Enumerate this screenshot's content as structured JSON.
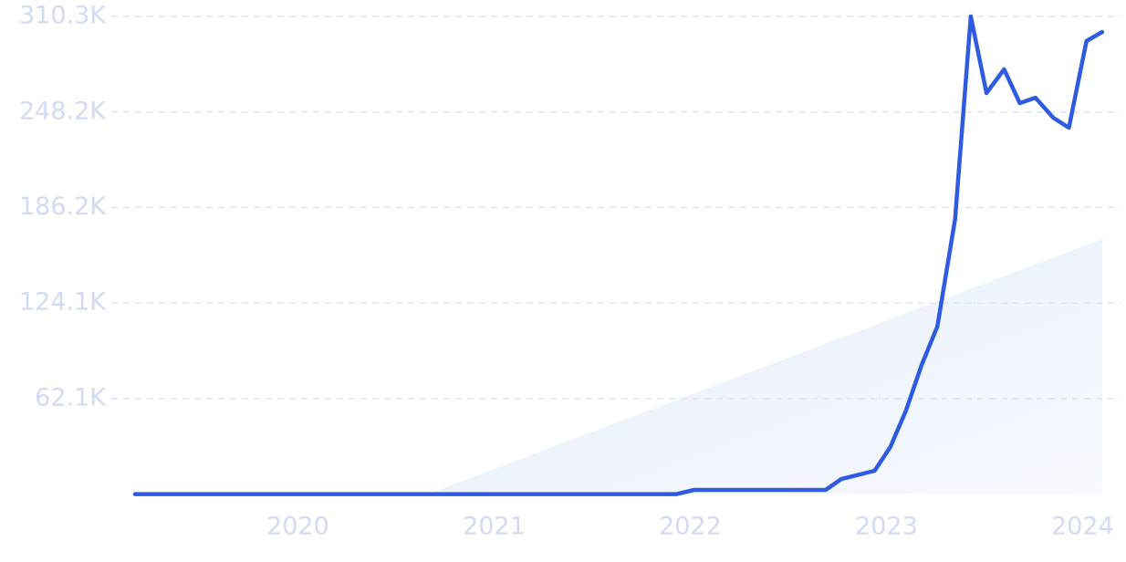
{
  "chart_data": {
    "type": "line",
    "x": [
      2019.17,
      2021.93,
      2022.02,
      2022.69,
      2022.77,
      2022.94,
      2023.02,
      2023.1,
      2023.18,
      2023.26,
      2023.35,
      2023.43,
      2023.51,
      2023.6,
      2023.68,
      2023.76,
      2023.85,
      2023.93,
      2024.02,
      2024.1
    ],
    "series": [
      {
        "color": "#2f5be0",
        "values": [
          0,
          0,
          2700,
          2700,
          9800,
          15200,
          30600,
          54300,
          84000,
          108900,
          178700,
          310300,
          260500,
          275900,
          254000,
          257500,
          244500,
          238000,
          294300,
          300200
        ]
      }
    ],
    "xlim": [
      2019.17,
      2024.17
    ],
    "xticks": [
      2020,
      2021,
      2022,
      2023,
      2024
    ],
    "ylim": [
      0,
      310300
    ],
    "yticks": [
      {
        "value": 62100,
        "label": "62.1K"
      },
      {
        "value": 124100,
        "label": "124.1K"
      },
      {
        "value": 186200,
        "label": "186.2K"
      },
      {
        "value": 248200,
        "label": "248.2K"
      },
      {
        "value": 310300,
        "label": "310.3K"
      }
    ],
    "grid": true
  }
}
